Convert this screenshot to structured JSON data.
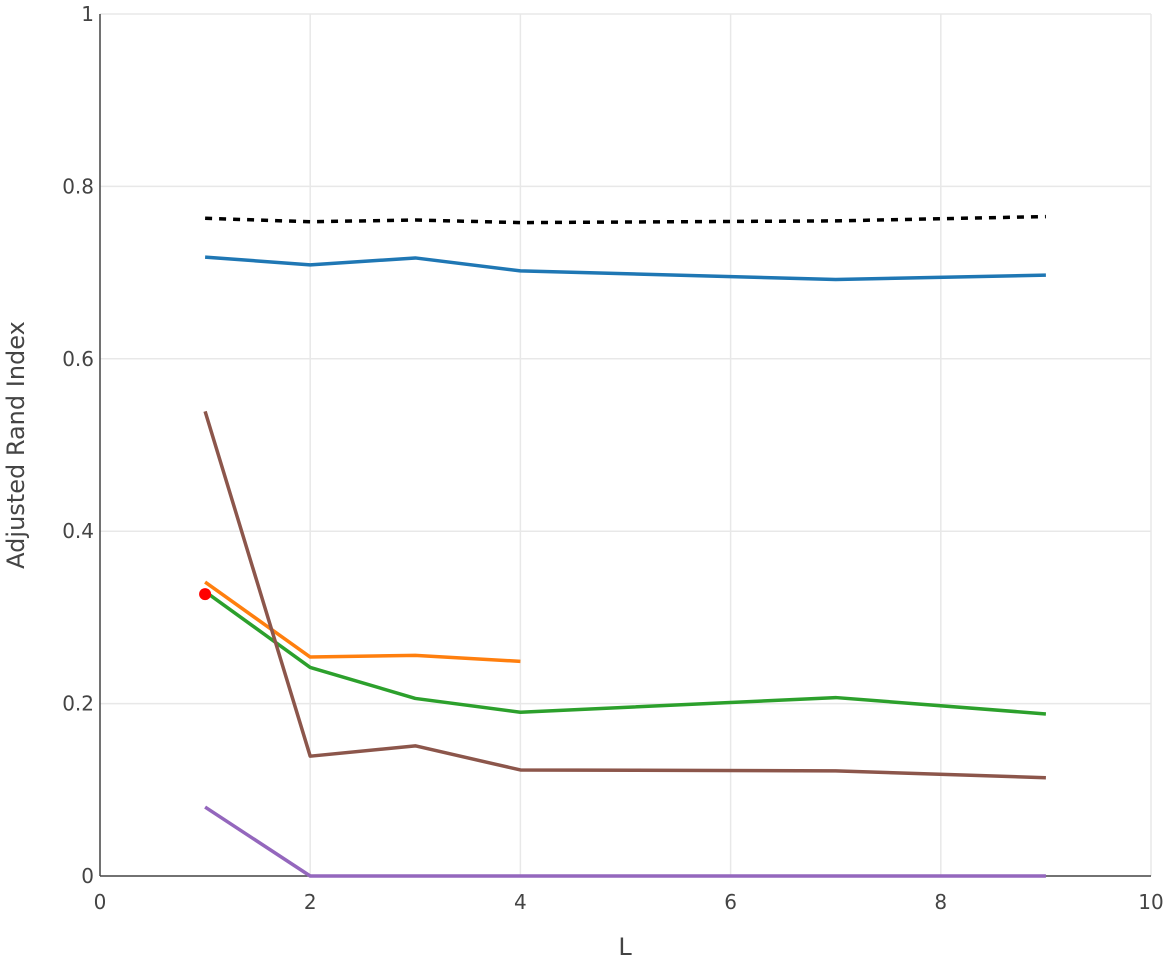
{
  "chart_data": {
    "type": "line",
    "xlabel": "L",
    "ylabel": "Adjusted Rand Index",
    "xlim": [
      0,
      10
    ],
    "ylim": [
      0,
      1
    ],
    "xticks": [
      0,
      2,
      4,
      6,
      8,
      10
    ],
    "yticks": [
      0,
      0.2,
      0.4,
      0.6,
      0.8,
      1
    ],
    "ytick_labels": [
      "0",
      "0.2",
      "0.4",
      "0.6",
      "0.8",
      "1"
    ],
    "grid": true,
    "legend": false,
    "series": [
      {
        "color": "#000000",
        "dash": "dot",
        "mode": "line",
        "x": [
          1,
          2,
          3,
          4,
          7,
          9
        ],
        "y": [
          0.763,
          0.759,
          0.761,
          0.758,
          0.76,
          0.765
        ]
      },
      {
        "color": "#1f77b4",
        "mode": "line",
        "x": [
          1,
          2,
          3,
          4,
          7,
          9
        ],
        "y": [
          0.718,
          0.709,
          0.717,
          0.702,
          0.692,
          0.697
        ]
      },
      {
        "color": "#ff7f0e",
        "mode": "line",
        "x": [
          1,
          2,
          3,
          4
        ],
        "y": [
          0.341,
          0.254,
          0.256,
          0.249
        ]
      },
      {
        "color": "#2ca02c",
        "mode": "line",
        "x": [
          1,
          2,
          3,
          4,
          7,
          9
        ],
        "y": [
          0.33,
          0.242,
          0.206,
          0.19,
          0.207,
          0.188
        ]
      },
      {
        "color": "#8c564b",
        "mode": "line",
        "x": [
          1,
          2,
          3,
          4,
          7,
          9
        ],
        "y": [
          0.539,
          0.139,
          0.151,
          0.123,
          0.122,
          0.114
        ]
      },
      {
        "color": "#9467bd",
        "mode": "line",
        "x": [
          1,
          2,
          3,
          4,
          7,
          9
        ],
        "y": [
          0.08,
          0.0,
          0.0,
          0.0,
          0.0,
          0.0
        ]
      },
      {
        "color": "#ff0000",
        "mode": "marker",
        "x": [
          1
        ],
        "y": [
          0.327
        ]
      }
    ]
  }
}
